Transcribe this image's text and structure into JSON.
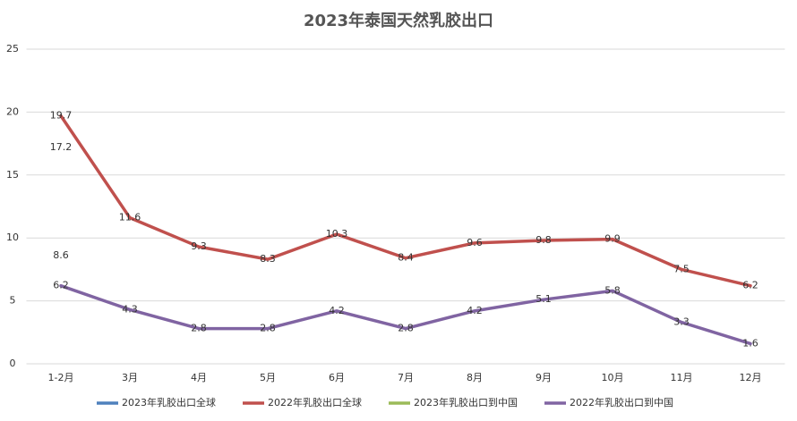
{
  "chart_data": {
    "type": "line",
    "title": "2023年泰国天然乳胶出口",
    "categories": [
      "1-2月",
      "3月",
      "4月",
      "5月",
      "6月",
      "7月",
      "8月",
      "9月",
      "10月",
      "11月",
      "12月"
    ],
    "series": [
      {
        "name": "2023年乳胶出口全球",
        "color": "#4f81bd",
        "values": [
          17.2,
          null,
          null,
          null,
          null,
          null,
          null,
          null,
          null,
          null,
          null
        ]
      },
      {
        "name": "2022年乳胶出口全球",
        "color": "#c0504d",
        "values": [
          19.7,
          11.6,
          9.3,
          8.3,
          10.3,
          8.4,
          9.6,
          9.8,
          9.9,
          7.5,
          6.2
        ]
      },
      {
        "name": "2023年乳胶出口到中国",
        "color": "#9bbb59",
        "values": [
          8.6,
          null,
          null,
          null,
          null,
          null,
          null,
          null,
          null,
          null,
          null
        ]
      },
      {
        "name": "2022年乳胶出口到中国",
        "color": "#8064a2",
        "values": [
          6.2,
          4.3,
          2.8,
          2.8,
          4.2,
          2.8,
          4.2,
          5.1,
          5.8,
          3.3,
          1.6
        ]
      }
    ],
    "ylim": [
      0,
      25
    ],
    "yticks": [
      0,
      5,
      10,
      15,
      20,
      25
    ],
    "grid": true,
    "legend": "bottom"
  }
}
